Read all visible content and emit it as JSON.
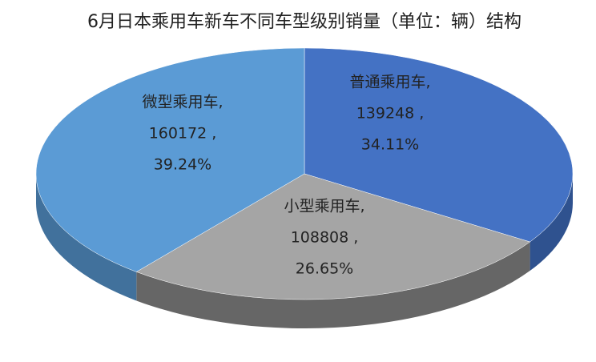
{
  "chart_data": {
    "type": "pie3d",
    "title": "6月日本乘用车新车不同车型级别销量（单位：辆）结构",
    "categories": [
      "普通乘用车,",
      "小型乘用车,",
      "微型乘用车,"
    ],
    "values": [
      139248,
      108808,
      160172
    ],
    "value_labels": [
      "139248 ,",
      "108808 ,",
      "160172 ,"
    ],
    "percentages": [
      34.11,
      26.65,
      39.24
    ],
    "percentage_labels": [
      "34.11%",
      "26.65%",
      "39.24%"
    ],
    "colors": [
      "#4472c4",
      "#a5a5a5",
      "#5b9bd5"
    ],
    "side_colors": [
      "#2f528f",
      "#666666",
      "#41719c"
    ]
  }
}
